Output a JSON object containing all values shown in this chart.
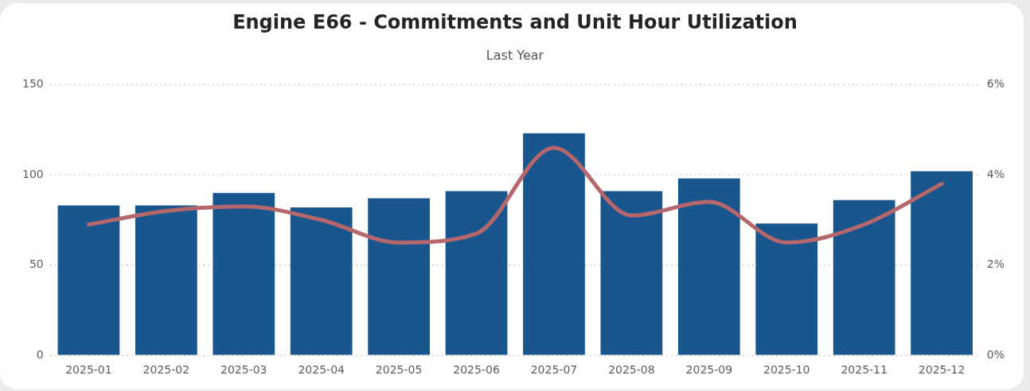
{
  "chart_data": {
    "type": "bar",
    "title": "Engine E66 - Commitments and Unit Hour Utilization",
    "subtitle": "Last Year",
    "categories": [
      "2025-01",
      "2025-02",
      "2025-03",
      "2025-04",
      "2025-05",
      "2025-06",
      "2025-07",
      "2025-08",
      "2025-09",
      "2025-10",
      "2025-11",
      "2025-12"
    ],
    "series": [
      {
        "color": "#1a568e",
        "values": [
          83,
          83,
          90,
          82,
          87,
          91,
          123,
          91,
          98,
          73,
          86,
          102
        ]
      },
      {
        "type": "line",
        "axis": "y2",
        "color": "#b5676b",
        "values": [
          2.9,
          3.2,
          3.3,
          3.0,
          2.5,
          2.7,
          4.6,
          3.1,
          3.4,
          2.5,
          2.9,
          3.8
        ]
      }
    ],
    "ylim": [
      0,
      150
    ],
    "yticks": [
      0,
      50,
      100,
      150
    ],
    "y2lim": [
      0,
      6
    ],
    "y2ticks": [
      {
        "value": 0,
        "label": "0%"
      },
      {
        "value": 2,
        "label": "2%"
      },
      {
        "value": 4,
        "label": "4%"
      },
      {
        "value": 6,
        "label": "6%"
      }
    ],
    "grid": "y",
    "legend": false,
    "marker": "none",
    "line_style": "solid"
  }
}
